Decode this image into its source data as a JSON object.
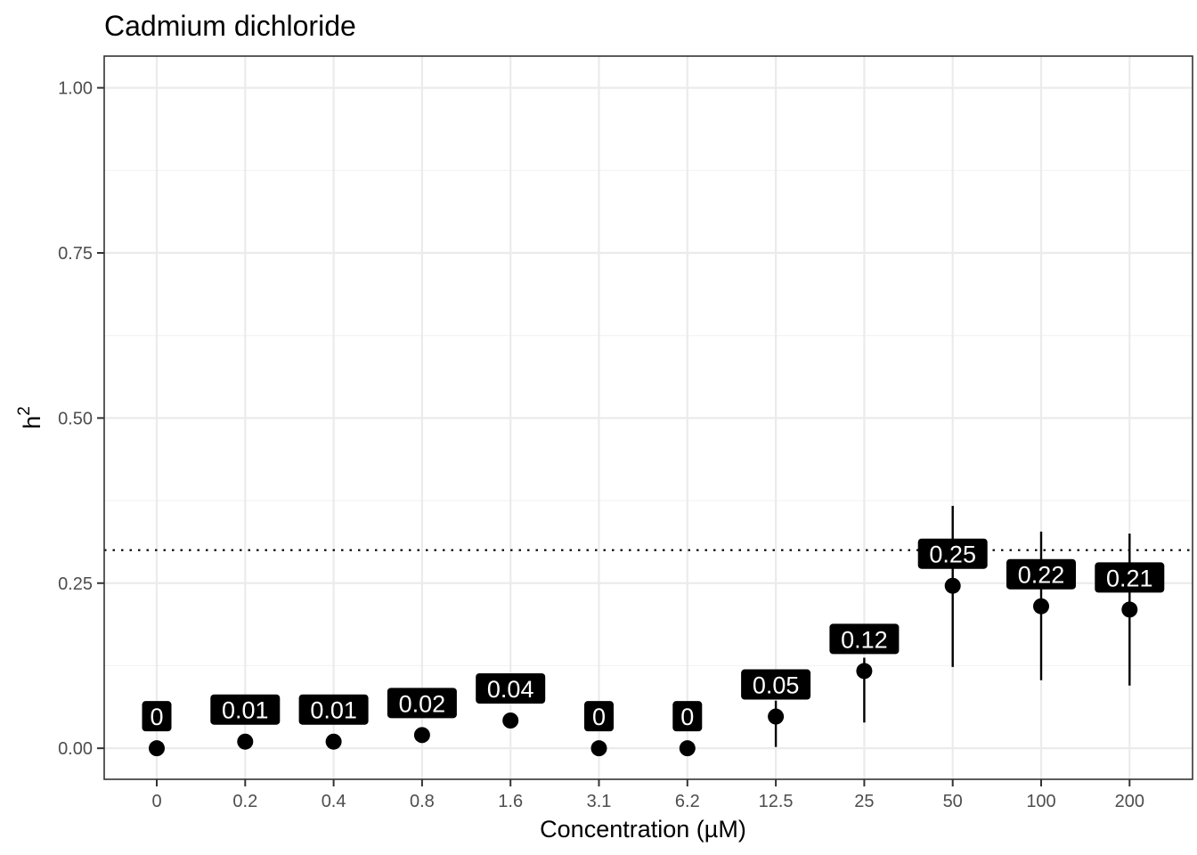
{
  "chart_data": {
    "type": "scatter",
    "title": "Cadmium dichloride",
    "xlabel": "Concentration (µM)",
    "ylabel": "h",
    "ylabel_superscript": "2",
    "categories": [
      "0",
      "0.2",
      "0.4",
      "0.8",
      "1.6",
      "3.1",
      "6.2",
      "12.5",
      "25",
      "50",
      "100",
      "200"
    ],
    "values": [
      0,
      0.01,
      0.01,
      0.02,
      0.042,
      0,
      0,
      0.048,
      0.117,
      0.246,
      0.215,
      0.21
    ],
    "lower": [
      0,
      0.01,
      0.01,
      0.02,
      0.042,
      0,
      0,
      0.002,
      0.039,
      0.123,
      0.103,
      0.095
    ],
    "upper": [
      0,
      0.01,
      0.01,
      0.02,
      0.042,
      0,
      0,
      0.072,
      0.137,
      0.367,
      0.328,
      0.325
    ],
    "labels": [
      "0",
      "0.01",
      "0.01",
      "0.02",
      "0.04",
      "0",
      "0",
      "0.05",
      "0.12",
      "0.25",
      "0.22",
      "0.21"
    ],
    "yticks": [
      "0.00",
      "0.25",
      "0.50",
      "0.75",
      "1.00"
    ],
    "ytick_values": [
      0,
      0.25,
      0.5,
      0.75,
      1.0
    ],
    "ylim": [
      -0.047,
      1.048
    ],
    "reference_line": 0.3,
    "grid": true,
    "legend": "none"
  }
}
